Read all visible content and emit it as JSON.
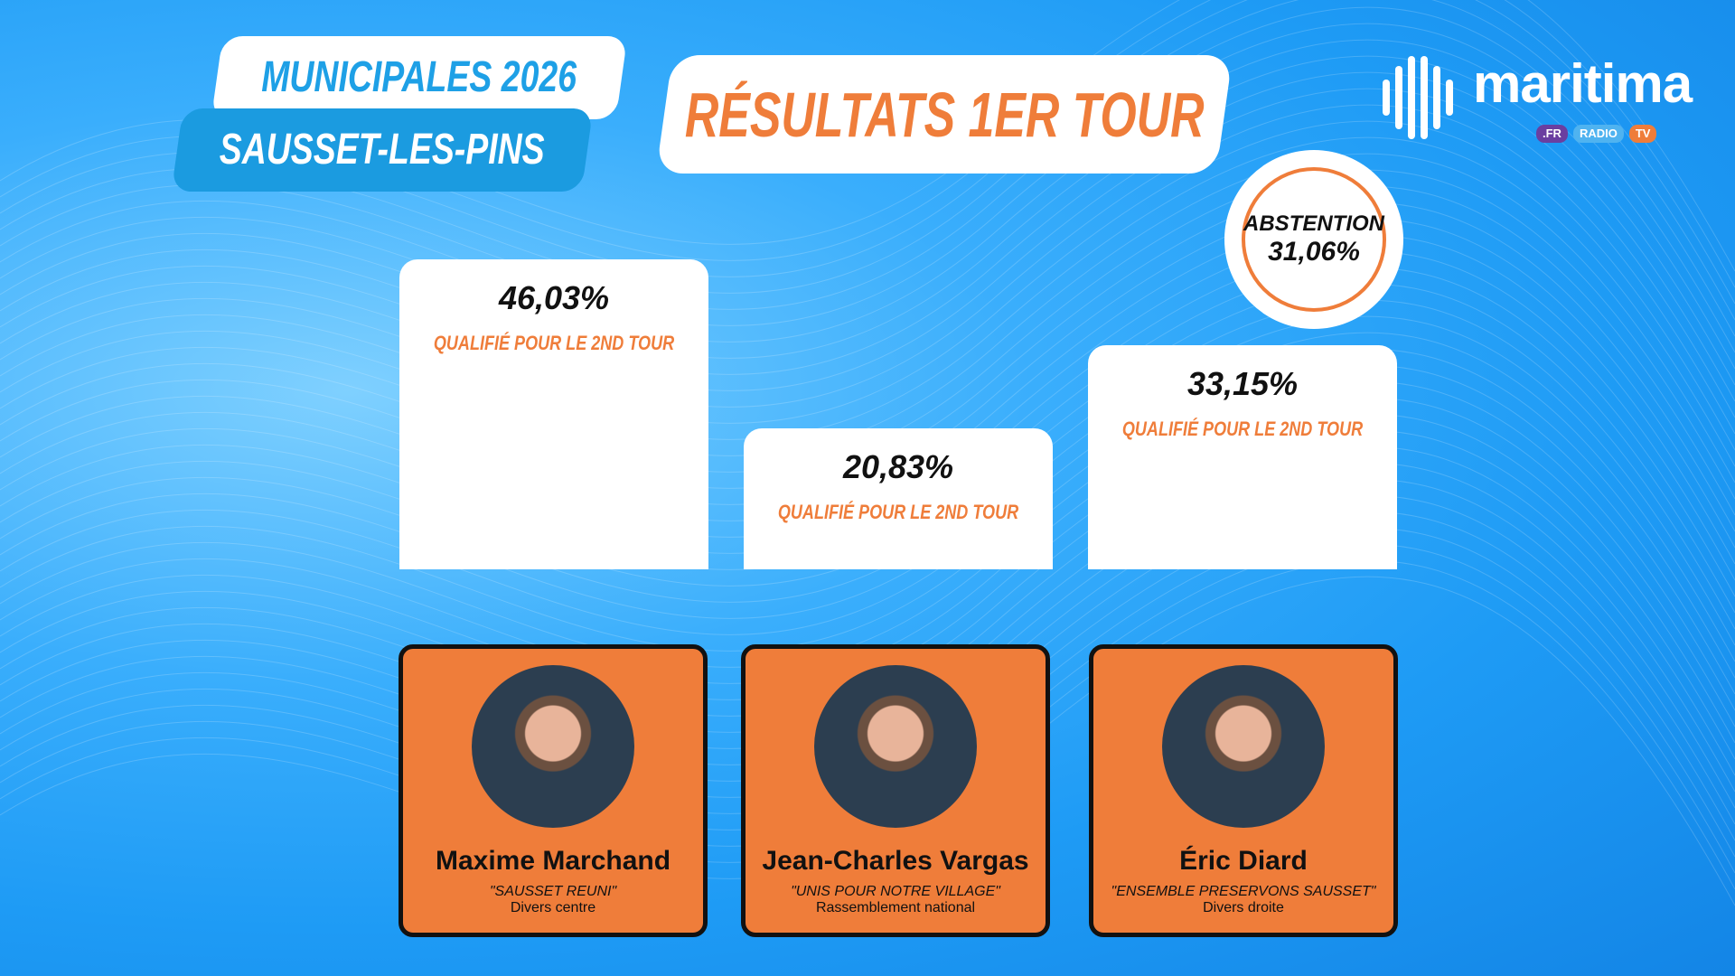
{
  "header": {
    "event": "MUNICIPALES 2026",
    "city": "SAUSSET-LES-PINS",
    "title": "RÉSULTATS 1ER TOUR"
  },
  "logo": {
    "word": "maritima",
    "pills": [
      {
        "label": ".FR",
        "color": "#6a3fa0"
      },
      {
        "label": "RADIO",
        "color": "#4fb3f0"
      },
      {
        "label": "TV",
        "color": "#ef7d3a"
      }
    ]
  },
  "abstention": {
    "label": "ABSTENTION",
    "value": "31,06%"
  },
  "colors": {
    "accent": "#ef7d3a",
    "blue": "#1b9be0"
  },
  "results": [
    {
      "percent": "46,03%",
      "value": 46.03,
      "status": "QUALIFIÉ POUR LE 2ND TOUR"
    },
    {
      "percent": "20,83%",
      "value": 20.83,
      "status": "QUALIFIÉ POUR LE 2ND TOUR"
    },
    {
      "percent": "33,15%",
      "value": 33.15,
      "status": "QUALIFIÉ POUR LE 2ND TOUR"
    }
  ],
  "candidates": [
    {
      "name": "Maxime Marchand",
      "list": "\"SAUSSET REUNI\"",
      "party": "Divers centre"
    },
    {
      "name": "Jean-Charles Vargas",
      "list": "\"UNIS POUR NOTRE VILLAGE\"",
      "party": "Rassemblement national"
    },
    {
      "name": "Éric Diard",
      "list": "\"ENSEMBLE PRESERVONS SAUSSET\"",
      "party": "Divers droite"
    }
  ]
}
